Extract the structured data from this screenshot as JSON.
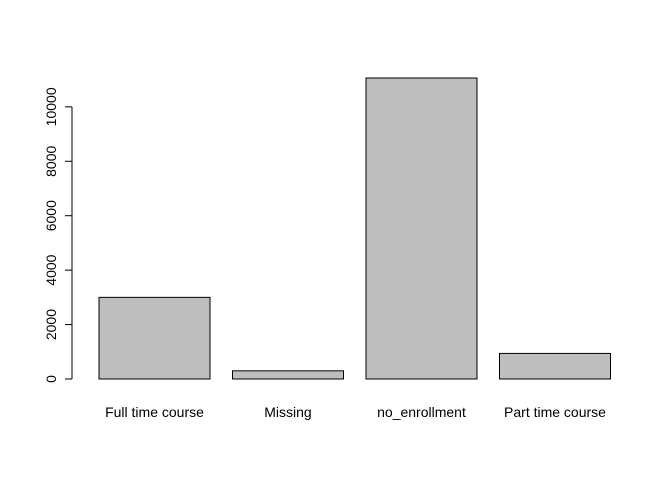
{
  "chart_data": {
    "type": "bar",
    "title": "",
    "xlabel": "",
    "ylabel": "",
    "categories": [
      "Full time course",
      "Missing",
      "no_enrollment",
      "Part time course"
    ],
    "values": [
      3000,
      300,
      11060,
      940
    ],
    "ylim": [
      0,
      11060
    ],
    "yticks": [
      0,
      2000,
      4000,
      6000,
      8000,
      10000
    ],
    "ytick_labels": [
      "0",
      "2000",
      "4000",
      "6000",
      "8000",
      "10000"
    ],
    "bar_color": "#bebebe",
    "border_color": "#000000",
    "grid": false,
    "legend": "none"
  }
}
